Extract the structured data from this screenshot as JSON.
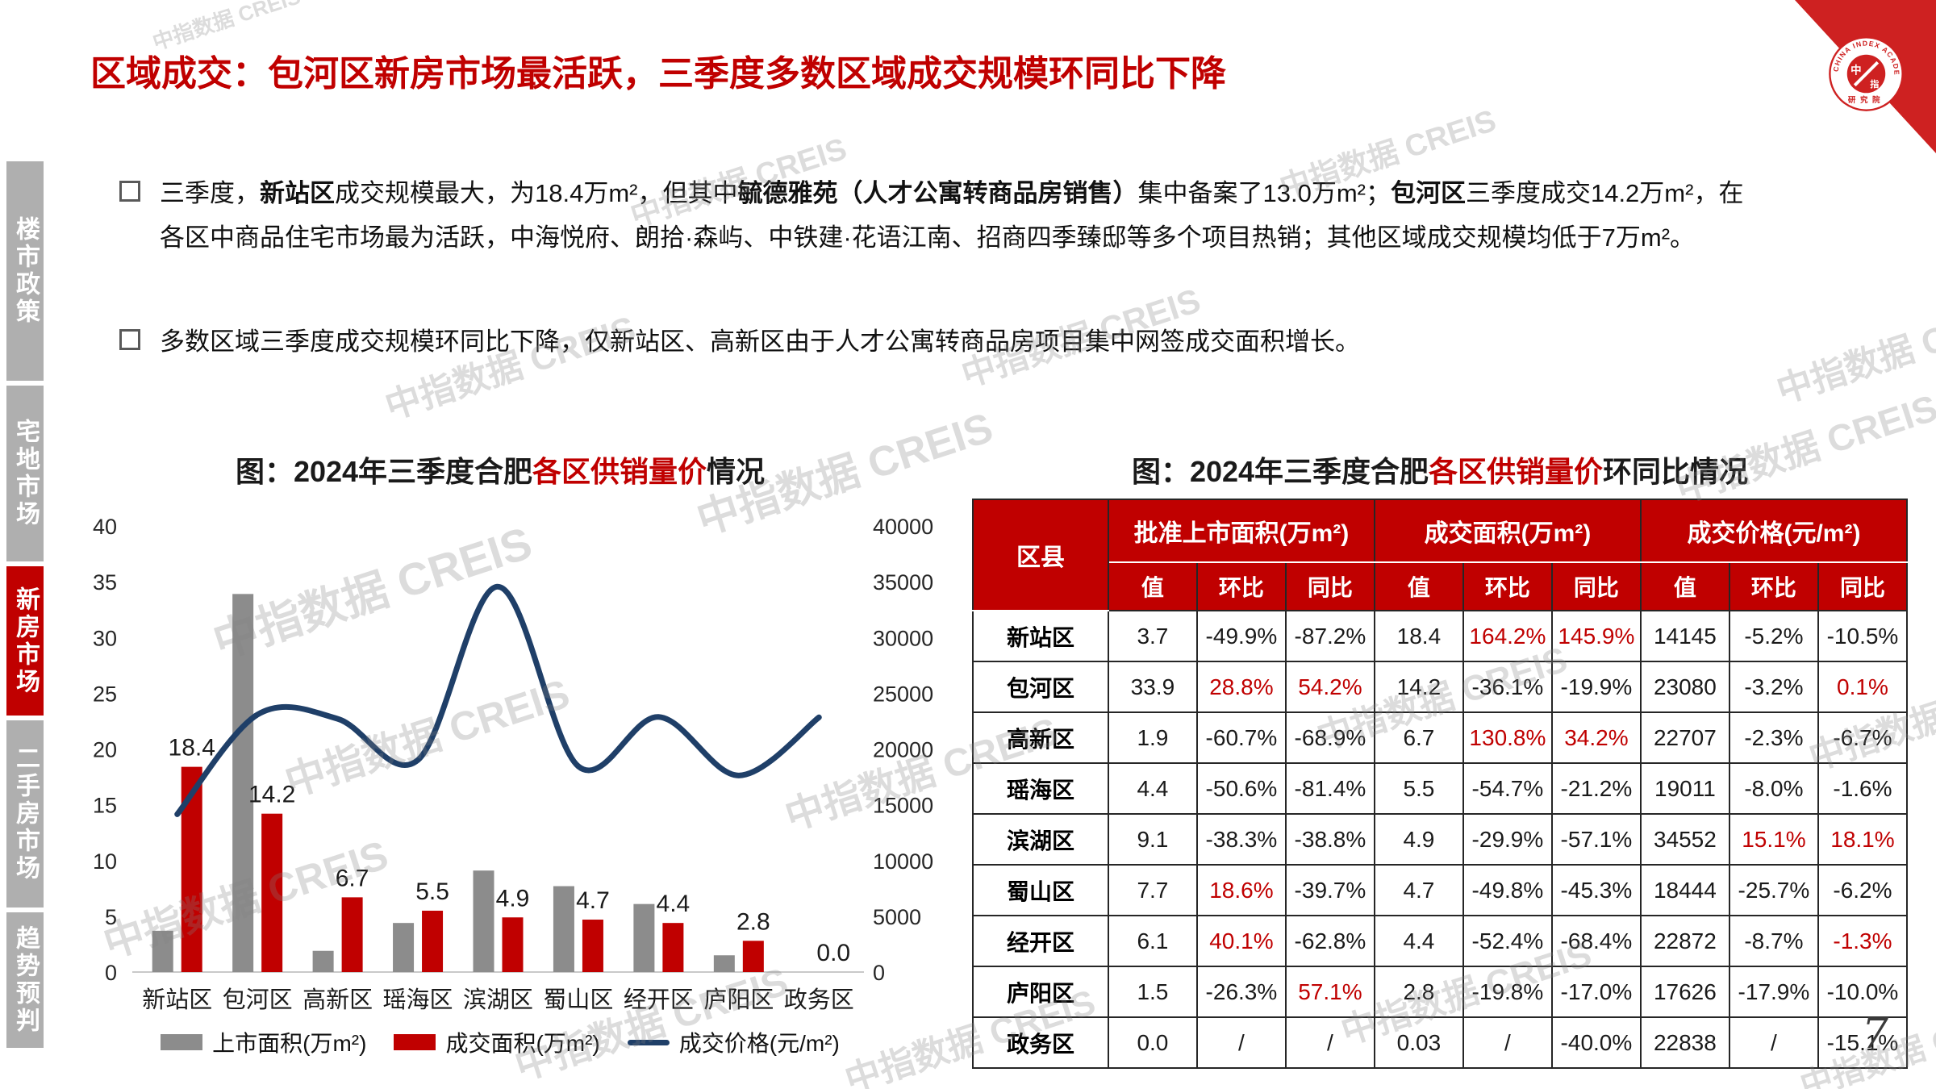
{
  "title": "区域成交：包河区新房市场最活跃，三季度多数区域成交规模环同比下降",
  "page": {
    "number": "7"
  },
  "watermark": {
    "text": "中指数据 CREIS"
  },
  "logo": {
    "ring_text": "CHINA INDEX ACADEMY",
    "bottom_text": "研究院",
    "center_mark": "中指"
  },
  "sidebar": {
    "items": [
      {
        "label": "楼市政策",
        "active": false
      },
      {
        "label": "宅地市场",
        "active": false
      },
      {
        "label": "新房市场",
        "active": true
      },
      {
        "label": "二手房市场",
        "active": false
      },
      {
        "label": "趋势预判",
        "active": false
      }
    ]
  },
  "bullets": [
    {
      "segments": [
        {
          "t": "三季度，",
          "b": false
        },
        {
          "t": "新站区",
          "b": true
        },
        {
          "t": "成交规模最大，为18.4万m²，但其中",
          "b": false
        },
        {
          "t": "毓德雅苑（人才公寓转商品房销售）",
          "b": true
        },
        {
          "t": "集中备案了13.0万m²；",
          "b": false
        },
        {
          "t": "包河区",
          "b": true
        },
        {
          "t": "三季度成交14.2万m²，在各区中商品住宅市场最为活跃，中海悦府、朗拾·森屿、中铁建·花语江南、招商四季臻邸等多个项目热销；其他区域成交规模均低于7万m²。",
          "b": false
        }
      ]
    },
    {
      "segments": [
        {
          "t": "多数区域三季度成交规模环同比下降，仅新站区、高新区由于人才公寓转商品房项目集中网签成交面积增长。",
          "b": false
        }
      ]
    }
  ],
  "chart": {
    "title": {
      "prefix": "图：2024年三季度合肥",
      "red": "各区供销量价",
      "suffix": "情况"
    }
  },
  "chart_data": {
    "type": "bar+line",
    "categories": [
      "新站区",
      "包河区",
      "高新区",
      "瑶海区",
      "滨湖区",
      "蜀山区",
      "经开区",
      "庐阳区",
      "政务区"
    ],
    "series": [
      {
        "name": "上市面积(万m²)",
        "type": "bar",
        "color": "#8C8C8C",
        "values": [
          3.7,
          33.9,
          1.9,
          4.4,
          9.1,
          7.7,
          6.1,
          1.5,
          0.0
        ]
      },
      {
        "name": "成交面积(万m²)",
        "type": "bar",
        "color": "#C00000",
        "show_labels": true,
        "values": [
          18.4,
          14.2,
          6.7,
          5.5,
          4.9,
          4.7,
          4.4,
          2.8,
          0.0
        ]
      },
      {
        "name": "成交价格(元/m²)",
        "type": "line",
        "color": "#1F3F68",
        "axis": "right",
        "values": [
          14145,
          23080,
          22707,
          19011,
          34552,
          18444,
          22872,
          17626,
          22838
        ]
      }
    ],
    "left_axis": {
      "min": 0,
      "max": 40,
      "step": 5
    },
    "right_axis": {
      "min": 0,
      "max": 40000,
      "step": 5000
    },
    "grid": false,
    "legend_position": "bottom"
  },
  "table": {
    "title": {
      "prefix": "图：2024年三季度合肥",
      "red": "各区供销量价",
      "suffix": "环同比情况"
    },
    "corner_header": "区县",
    "groups": [
      "批准上市面积(万m²)",
      "成交面积(万m²)",
      "成交价格(元/m²)"
    ],
    "sub_headers": [
      "值",
      "环比",
      "同比"
    ],
    "rows": [
      {
        "name": "新站区",
        "cells": [
          {
            "v": "3.7"
          },
          {
            "v": "-49.9%"
          },
          {
            "v": "-87.2%"
          },
          {
            "v": "18.4"
          },
          {
            "v": "164.2%",
            "red": true
          },
          {
            "v": "145.9%",
            "red": true
          },
          {
            "v": "14145"
          },
          {
            "v": "-5.2%"
          },
          {
            "v": "-10.5%"
          }
        ]
      },
      {
        "name": "包河区",
        "cells": [
          {
            "v": "33.9"
          },
          {
            "v": "28.8%",
            "red": true
          },
          {
            "v": "54.2%",
            "red": true
          },
          {
            "v": "14.2"
          },
          {
            "v": "-36.1%"
          },
          {
            "v": "-19.9%"
          },
          {
            "v": "23080"
          },
          {
            "v": "-3.2%"
          },
          {
            "v": "0.1%",
            "red": true
          }
        ]
      },
      {
        "name": "高新区",
        "cells": [
          {
            "v": "1.9"
          },
          {
            "v": "-60.7%"
          },
          {
            "v": "-68.9%"
          },
          {
            "v": "6.7"
          },
          {
            "v": "130.8%",
            "red": true
          },
          {
            "v": "34.2%",
            "red": true
          },
          {
            "v": "22707"
          },
          {
            "v": "-2.3%"
          },
          {
            "v": "-6.7%"
          }
        ]
      },
      {
        "name": "瑶海区",
        "cells": [
          {
            "v": "4.4"
          },
          {
            "v": "-50.6%"
          },
          {
            "v": "-81.4%"
          },
          {
            "v": "5.5"
          },
          {
            "v": "-54.7%"
          },
          {
            "v": "-21.2%"
          },
          {
            "v": "19011"
          },
          {
            "v": "-8.0%"
          },
          {
            "v": "-1.6%"
          }
        ]
      },
      {
        "name": "滨湖区",
        "cells": [
          {
            "v": "9.1"
          },
          {
            "v": "-38.3%"
          },
          {
            "v": "-38.8%"
          },
          {
            "v": "4.9"
          },
          {
            "v": "-29.9%"
          },
          {
            "v": "-57.1%"
          },
          {
            "v": "34552"
          },
          {
            "v": "15.1%",
            "red": true
          },
          {
            "v": "18.1%",
            "red": true
          }
        ]
      },
      {
        "name": "蜀山区",
        "cells": [
          {
            "v": "7.7"
          },
          {
            "v": "18.6%",
            "red": true
          },
          {
            "v": "-39.7%"
          },
          {
            "v": "4.7"
          },
          {
            "v": "-49.8%"
          },
          {
            "v": "-45.3%"
          },
          {
            "v": "18444"
          },
          {
            "v": "-25.7%"
          },
          {
            "v": "-6.2%"
          }
        ]
      },
      {
        "name": "经开区",
        "cells": [
          {
            "v": "6.1"
          },
          {
            "v": "40.1%",
            "red": true
          },
          {
            "v": "-62.8%"
          },
          {
            "v": "4.4"
          },
          {
            "v": "-52.4%"
          },
          {
            "v": "-68.4%"
          },
          {
            "v": "22872"
          },
          {
            "v": "-8.7%"
          },
          {
            "v": "-1.3%",
            "red": true
          }
        ]
      },
      {
        "name": "庐阳区",
        "cells": [
          {
            "v": "1.5"
          },
          {
            "v": "-26.3%"
          },
          {
            "v": "57.1%",
            "red": true
          },
          {
            "v": "2.8"
          },
          {
            "v": "-19.8%"
          },
          {
            "v": "-17.0%"
          },
          {
            "v": "17626"
          },
          {
            "v": "-17.9%"
          },
          {
            "v": "-10.0%"
          }
        ]
      },
      {
        "name": "政务区",
        "cells": [
          {
            "v": "0.0"
          },
          {
            "v": "/"
          },
          {
            "v": "/"
          },
          {
            "v": "0.03"
          },
          {
            "v": "/"
          },
          {
            "v": "-40.0%"
          },
          {
            "v": "22838"
          },
          {
            "v": "/"
          },
          {
            "v": "-15.1%"
          }
        ]
      }
    ]
  }
}
